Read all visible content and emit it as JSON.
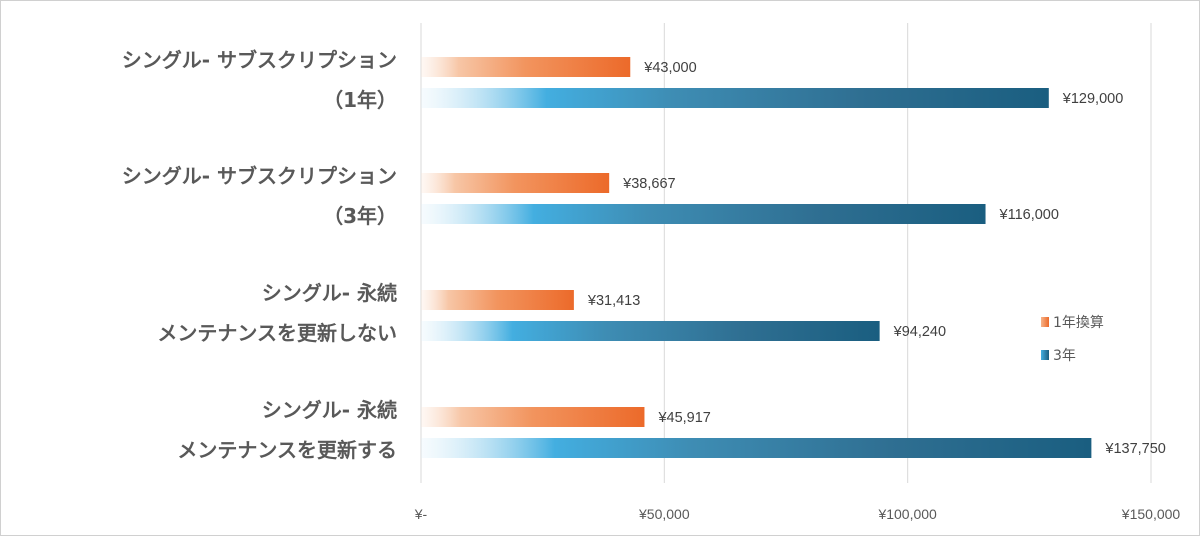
{
  "chart_data": {
    "type": "bar",
    "orientation": "horizontal",
    "categories": [
      [
        "シングル- サブスクリプション",
        "（1年）"
      ],
      [
        "シングル- サブスクリプション",
        "（3年）"
      ],
      [
        "シングル- 永続",
        "メンテナンスを更新しない"
      ],
      [
        "シングル- 永続",
        "メンテナンスを更新する"
      ]
    ],
    "series": [
      {
        "name": "1年換算",
        "values": [
          43000,
          38667,
          31413,
          45917
        ],
        "labels": [
          "¥43,000",
          "¥38,667",
          "¥31,413",
          "¥45,917"
        ],
        "color": "#ED6E2F"
      },
      {
        "name": "3年",
        "values": [
          129000,
          116000,
          94240,
          137750
        ],
        "labels": [
          "¥129,000",
          "¥116,000",
          "¥94,240",
          "¥137,750"
        ],
        "color": "#1A5E80"
      }
    ],
    "xlim": [
      0,
      150000
    ],
    "xticks": [
      0,
      50000,
      100000,
      150000
    ],
    "xtick_labels": [
      "¥-",
      "¥50,000",
      "¥100,000",
      "¥150,000"
    ],
    "grid": true,
    "legend_position": "right"
  }
}
